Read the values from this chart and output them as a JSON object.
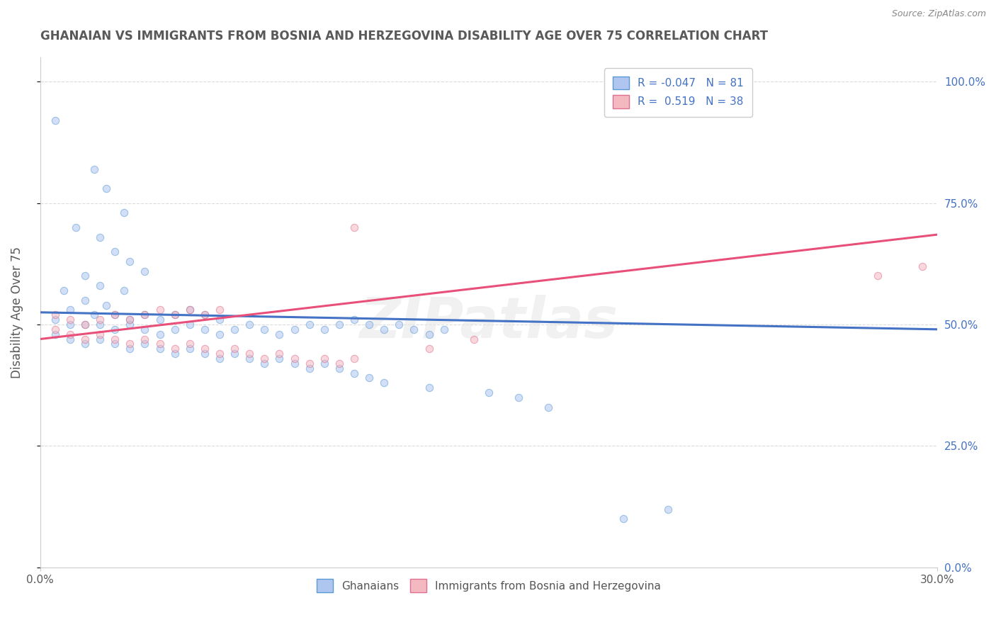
{
  "title": "GHANAIAN VS IMMIGRANTS FROM BOSNIA AND HERZEGOVINA DISABILITY AGE OVER 75 CORRELATION CHART",
  "source": "Source: ZipAtlas.com",
  "ylabel": "Disability Age Over 75",
  "xlim": [
    0.0,
    0.3
  ],
  "ylim": [
    0.0,
    1.05
  ],
  "yticks": [
    0.0,
    0.25,
    0.5,
    0.75,
    1.0
  ],
  "ytick_labels": [
    "0.0%",
    "25.0%",
    "50.0%",
    "75.0%",
    "100.0%"
  ],
  "xticks": [
    0.0,
    0.3
  ],
  "xtick_labels": [
    "0.0%",
    "30.0%"
  ],
  "watermark": "ZIPatlas",
  "background_color": "#ffffff",
  "legend_entries": [
    {
      "label": "R = -0.047   N = 81"
    },
    {
      "label": "R =  0.519   N = 38"
    }
  ],
  "bottom_legend_labels": [
    "Ghanaians",
    "Immigrants from Bosnia and Herzegovina"
  ],
  "ghanaian_scatter": [
    [
      0.005,
      0.92
    ],
    [
      0.018,
      0.82
    ],
    [
      0.022,
      0.78
    ],
    [
      0.028,
      0.73
    ],
    [
      0.012,
      0.7
    ],
    [
      0.02,
      0.68
    ],
    [
      0.025,
      0.65
    ],
    [
      0.03,
      0.63
    ],
    [
      0.035,
      0.61
    ],
    [
      0.015,
      0.6
    ],
    [
      0.02,
      0.58
    ],
    [
      0.028,
      0.57
    ],
    [
      0.008,
      0.57
    ],
    [
      0.015,
      0.55
    ],
    [
      0.022,
      0.54
    ],
    [
      0.01,
      0.53
    ],
    [
      0.018,
      0.52
    ],
    [
      0.025,
      0.52
    ],
    [
      0.03,
      0.51
    ],
    [
      0.035,
      0.52
    ],
    [
      0.04,
      0.51
    ],
    [
      0.045,
      0.52
    ],
    [
      0.05,
      0.53
    ],
    [
      0.055,
      0.52
    ],
    [
      0.06,
      0.51
    ],
    [
      0.005,
      0.51
    ],
    [
      0.01,
      0.5
    ],
    [
      0.015,
      0.5
    ],
    [
      0.02,
      0.5
    ],
    [
      0.025,
      0.49
    ],
    [
      0.03,
      0.5
    ],
    [
      0.035,
      0.49
    ],
    [
      0.04,
      0.48
    ],
    [
      0.045,
      0.49
    ],
    [
      0.05,
      0.5
    ],
    [
      0.055,
      0.49
    ],
    [
      0.06,
      0.48
    ],
    [
      0.065,
      0.49
    ],
    [
      0.07,
      0.5
    ],
    [
      0.075,
      0.49
    ],
    [
      0.08,
      0.48
    ],
    [
      0.085,
      0.49
    ],
    [
      0.09,
      0.5
    ],
    [
      0.095,
      0.49
    ],
    [
      0.1,
      0.5
    ],
    [
      0.105,
      0.51
    ],
    [
      0.11,
      0.5
    ],
    [
      0.115,
      0.49
    ],
    [
      0.12,
      0.5
    ],
    [
      0.125,
      0.49
    ],
    [
      0.13,
      0.48
    ],
    [
      0.135,
      0.49
    ],
    [
      0.005,
      0.48
    ],
    [
      0.01,
      0.47
    ],
    [
      0.015,
      0.46
    ],
    [
      0.02,
      0.47
    ],
    [
      0.025,
      0.46
    ],
    [
      0.03,
      0.45
    ],
    [
      0.035,
      0.46
    ],
    [
      0.04,
      0.45
    ],
    [
      0.045,
      0.44
    ],
    [
      0.05,
      0.45
    ],
    [
      0.055,
      0.44
    ],
    [
      0.06,
      0.43
    ],
    [
      0.065,
      0.44
    ],
    [
      0.07,
      0.43
    ],
    [
      0.075,
      0.42
    ],
    [
      0.08,
      0.43
    ],
    [
      0.085,
      0.42
    ],
    [
      0.09,
      0.41
    ],
    [
      0.095,
      0.42
    ],
    [
      0.1,
      0.41
    ],
    [
      0.105,
      0.4
    ],
    [
      0.11,
      0.39
    ],
    [
      0.115,
      0.38
    ],
    [
      0.13,
      0.37
    ],
    [
      0.15,
      0.36
    ],
    [
      0.16,
      0.35
    ],
    [
      0.17,
      0.33
    ],
    [
      0.195,
      0.1
    ],
    [
      0.21,
      0.12
    ]
  ],
  "bosnia_scatter": [
    [
      0.005,
      0.52
    ],
    [
      0.01,
      0.51
    ],
    [
      0.015,
      0.5
    ],
    [
      0.02,
      0.51
    ],
    [
      0.025,
      0.52
    ],
    [
      0.03,
      0.51
    ],
    [
      0.035,
      0.52
    ],
    [
      0.04,
      0.53
    ],
    [
      0.045,
      0.52
    ],
    [
      0.05,
      0.53
    ],
    [
      0.055,
      0.52
    ],
    [
      0.06,
      0.53
    ],
    [
      0.005,
      0.49
    ],
    [
      0.01,
      0.48
    ],
    [
      0.015,
      0.47
    ],
    [
      0.02,
      0.48
    ],
    [
      0.025,
      0.47
    ],
    [
      0.03,
      0.46
    ],
    [
      0.035,
      0.47
    ],
    [
      0.04,
      0.46
    ],
    [
      0.045,
      0.45
    ],
    [
      0.05,
      0.46
    ],
    [
      0.055,
      0.45
    ],
    [
      0.06,
      0.44
    ],
    [
      0.065,
      0.45
    ],
    [
      0.07,
      0.44
    ],
    [
      0.075,
      0.43
    ],
    [
      0.08,
      0.44
    ],
    [
      0.085,
      0.43
    ],
    [
      0.09,
      0.42
    ],
    [
      0.095,
      0.43
    ],
    [
      0.1,
      0.42
    ],
    [
      0.105,
      0.43
    ],
    [
      0.13,
      0.45
    ],
    [
      0.145,
      0.47
    ],
    [
      0.105,
      0.7
    ],
    [
      0.28,
      0.6
    ],
    [
      0.295,
      0.62
    ]
  ],
  "ghanaian_trend": {
    "x": [
      0.0,
      0.3
    ],
    "y": [
      0.525,
      0.49
    ]
  },
  "bosnia_trend": {
    "x": [
      0.0,
      0.3
    ],
    "y": [
      0.47,
      0.685
    ]
  },
  "colors": {
    "ghanaian_fill": "#aec6f0",
    "ghanaian_edge": "#5b9bd5",
    "bosnia_fill": "#f4b8c1",
    "bosnia_edge": "#e07090",
    "ghanaian_line": "#4472c4",
    "bosnia_line": "#e8507a",
    "grid": "#cccccc",
    "title": "#595959",
    "axis_label": "#595959",
    "tick_label_blue": "#4472c4",
    "tick_label_bottom": "#595959",
    "source": "#888888",
    "watermark": "#e8e8e8"
  },
  "title_fontsize": 12,
  "axis_label_fontsize": 12,
  "tick_fontsize": 11,
  "scatter_size": 55,
  "scatter_alpha": 0.55
}
